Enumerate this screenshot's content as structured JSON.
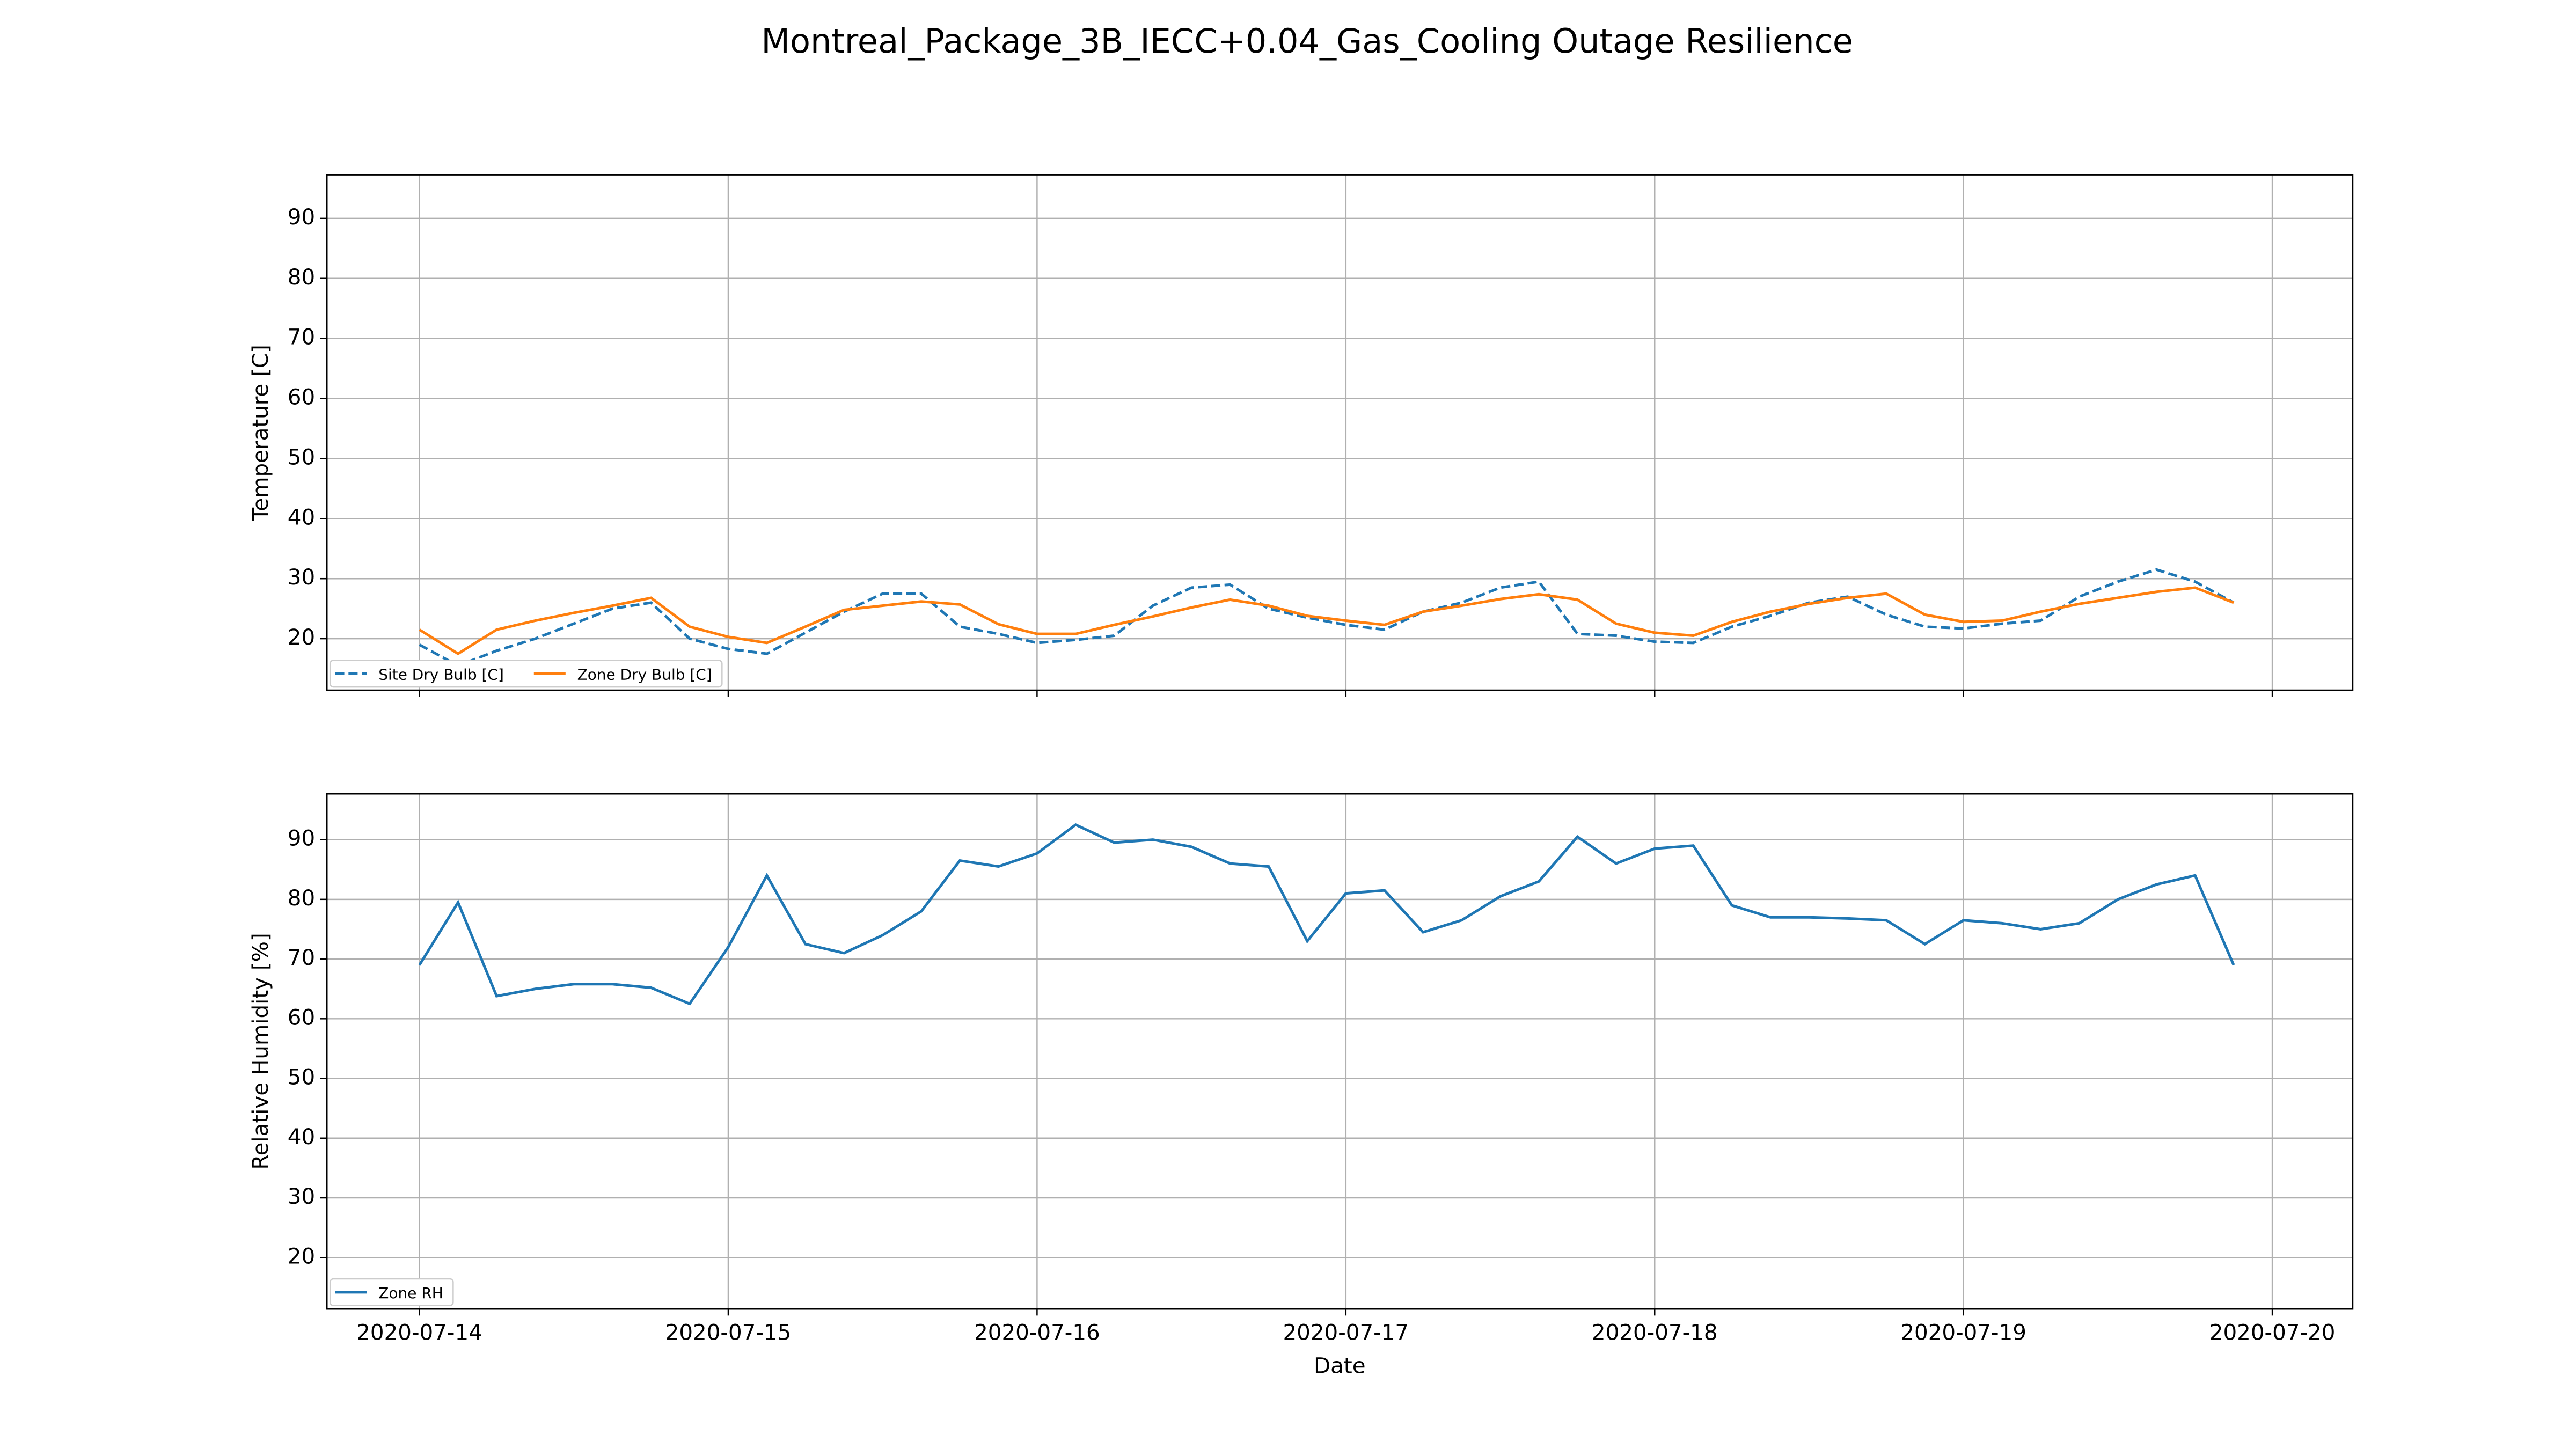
{
  "title": "Montreal_Package_3B_IECC+0.04_Gas_Cooling Outage Resilience",
  "chart_data": [
    {
      "type": "line",
      "ylabel": "Temperature [C]",
      "x": [
        0,
        0.125,
        0.25,
        0.375,
        0.5,
        0.625,
        0.75,
        0.875,
        1,
        1.125,
        1.25,
        1.375,
        1.5,
        1.625,
        1.75,
        1.875,
        2,
        2.125,
        2.25,
        2.375,
        2.5,
        2.625,
        2.75,
        2.875,
        3,
        3.125,
        3.25,
        3.375,
        3.5,
        3.625,
        3.75,
        3.875,
        4,
        4.125,
        4.25,
        4.375,
        4.5,
        4.625,
        4.75,
        4.875,
        5,
        5.125,
        5.25,
        5.375,
        5.5,
        5.625,
        5.75,
        5.875
      ],
      "xlim": [
        -0.3,
        6.26
      ],
      "xticks": [
        0,
        1,
        2,
        3,
        4,
        5,
        6
      ],
      "ylim": [
        11.4,
        97.2
      ],
      "yticks": [
        20,
        30,
        40,
        50,
        60,
        70,
        80,
        90
      ],
      "grid": true,
      "legend": "lower left",
      "series": [
        {
          "name": "Site Dry Bulb [C]",
          "color": "#1f77b4",
          "linestyle": "dashed",
          "values": [
            19,
            15.5,
            18,
            20,
            22.5,
            25,
            26,
            20,
            18.3,
            17.5,
            21,
            24.5,
            27.5,
            27.5,
            22,
            20.8,
            19.3,
            19.8,
            20.5,
            25.5,
            28.5,
            29,
            25,
            23.5,
            22.3,
            21.5,
            24.5,
            26,
            28.5,
            29.5,
            20.8,
            20.5,
            19.5,
            19.3,
            22,
            23.8,
            26,
            27,
            24,
            22,
            21.7,
            22.5,
            23,
            27,
            29.5,
            31.5,
            29.5,
            26
          ]
        },
        {
          "name": "Zone Dry Bulb [C]",
          "color": "#ff7f0e",
          "linestyle": "solid",
          "values": [
            21.5,
            17.5,
            21.5,
            23,
            24.3,
            25.5,
            26.8,
            22,
            20.3,
            19.3,
            22,
            24.8,
            25.5,
            26.2,
            25.7,
            22.4,
            20.8,
            20.8,
            22.3,
            23.7,
            25.2,
            26.5,
            25.5,
            23.8,
            23,
            22.3,
            24.5,
            25.5,
            26.6,
            27.4,
            26.5,
            22.5,
            21,
            20.5,
            22.8,
            24.5,
            25.8,
            26.8,
            27.5,
            24,
            22.8,
            23,
            24.5,
            25.8,
            26.8,
            27.8,
            28.5,
            26
          ]
        }
      ]
    },
    {
      "type": "line",
      "ylabel": "Relative Humidity [%]",
      "xlabel": "Date",
      "x": [
        0,
        0.125,
        0.25,
        0.375,
        0.5,
        0.625,
        0.75,
        0.875,
        1,
        1.125,
        1.25,
        1.375,
        1.5,
        1.625,
        1.75,
        1.875,
        2,
        2.125,
        2.25,
        2.375,
        2.5,
        2.625,
        2.75,
        2.875,
        3,
        3.125,
        3.25,
        3.375,
        3.5,
        3.625,
        3.75,
        3.875,
        4,
        4.125,
        4.25,
        4.375,
        4.5,
        4.625,
        4.75,
        4.875,
        5,
        5.125,
        5.25,
        5.375,
        5.5,
        5.625,
        5.75,
        5.875
      ],
      "xlim": [
        -0.3,
        6.26
      ],
      "xticks": [
        {
          "value": 0,
          "label": "2020-07-14"
        },
        {
          "value": 1,
          "label": "2020-07-15"
        },
        {
          "value": 2,
          "label": "2020-07-16"
        },
        {
          "value": 3,
          "label": "2020-07-17"
        },
        {
          "value": 4,
          "label": "2020-07-18"
        },
        {
          "value": 5,
          "label": "2020-07-19"
        },
        {
          "value": 6,
          "label": "2020-07-20"
        }
      ],
      "ylim": [
        11.4,
        97.7
      ],
      "yticks": [
        20,
        30,
        40,
        50,
        60,
        70,
        80,
        90
      ],
      "grid": true,
      "legend": "lower left",
      "series": [
        {
          "name": "Zone RH",
          "color": "#1f77b4",
          "linestyle": "solid",
          "values": [
            69,
            79.5,
            63.8,
            65,
            65.8,
            65.8,
            65.2,
            62.5,
            72,
            84,
            72.5,
            71,
            74,
            78,
            86.5,
            85.5,
            87.7,
            92.5,
            89.5,
            90,
            88.8,
            86,
            85.5,
            73,
            81,
            81.5,
            74.5,
            76.5,
            80.5,
            83,
            90.5,
            86,
            88.5,
            89,
            79,
            77,
            77,
            76.8,
            76.5,
            72.5,
            76.5,
            76,
            75,
            76,
            80,
            82.5,
            84,
            69
          ]
        }
      ]
    }
  ]
}
